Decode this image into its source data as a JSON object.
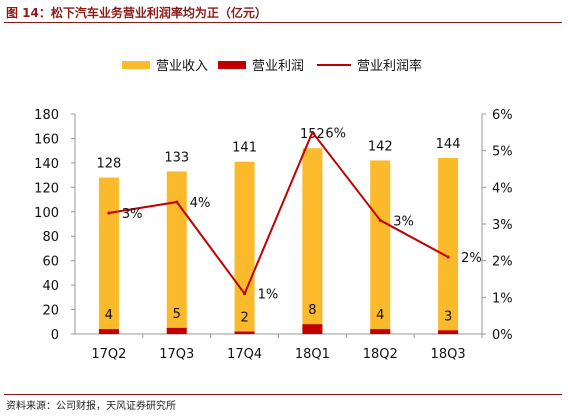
{
  "header": {
    "title": "图 14：松下汽车业务营业利润率均为正（亿元）"
  },
  "footer": {
    "source": "资料来源：公司财报，天风证券研究所"
  },
  "colors": {
    "revenue": "#FBBA2B",
    "profit": "#C00000",
    "margin": "#C00000",
    "accent": "#8b1a1a"
  },
  "chart_data": {
    "type": "bar",
    "categories": [
      "17Q2",
      "17Q3",
      "17Q4",
      "18Q1",
      "18Q2",
      "18Q3"
    ],
    "series": [
      {
        "name": "营业收入",
        "type": "bar",
        "axis": "left",
        "values": [
          128,
          133,
          141,
          152,
          142,
          144
        ]
      },
      {
        "name": "营业利润",
        "type": "bar",
        "axis": "left",
        "values": [
          4,
          5,
          2,
          8,
          4,
          3
        ]
      },
      {
        "name": "营业利润率",
        "type": "line",
        "axis": "right",
        "values": [
          3.3,
          3.6,
          1.1,
          5.5,
          3.1,
          2.1
        ],
        "labels": [
          "3%",
          "4%",
          "1%",
          "6%",
          "3%",
          "2%"
        ]
      }
    ],
    "ylim": [
      0,
      180
    ],
    "yticks": [
      0,
      20,
      40,
      60,
      80,
      100,
      120,
      140,
      160,
      180
    ],
    "y2lim": [
      0,
      6
    ],
    "y2ticks": [
      "0%",
      "1%",
      "2%",
      "3%",
      "4%",
      "5%",
      "6%"
    ],
    "legend_position": "top",
    "grid": false
  }
}
